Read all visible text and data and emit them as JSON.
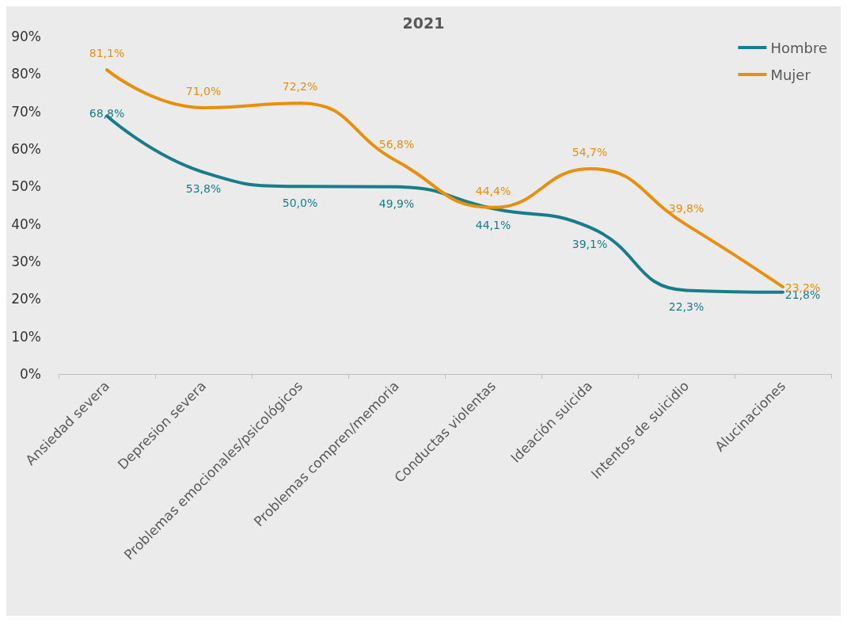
{
  "chart_data": {
    "type": "line",
    "title": "2021",
    "categories": [
      "Ansiedad severa",
      "Depresion severa",
      "Problemas emocionales/psicológicos",
      "Problemas compren/memoria",
      "Conductas violentas",
      "Ideación suicida",
      "Intentos de suicidio",
      "Alucinaciones"
    ],
    "series": [
      {
        "name": "Hombre",
        "color": "#177e89",
        "values": [
          68.8,
          53.8,
          50.0,
          49.9,
          44.1,
          39.1,
          22.3,
          21.8
        ],
        "value_labels": [
          "68,8%",
          "53,8%",
          "50,0%",
          "49,9%",
          "44,1%",
          "39,1%",
          "22,3%",
          "21,8%"
        ]
      },
      {
        "name": "Mujer",
        "color": "#e8900c",
        "values": [
          81.1,
          71.0,
          72.2,
          56.8,
          44.4,
          54.7,
          39.8,
          23.2
        ],
        "value_labels": [
          "81,1%",
          "71,0%",
          "72,2%",
          "56,8%",
          "44,4%",
          "54,7%",
          "39,8%",
          "23,2%"
        ]
      }
    ],
    "ylim": [
      0,
      90
    ],
    "yticks": [
      {
        "value": 0,
        "label": "0%"
      },
      {
        "value": 10,
        "label": "10%"
      },
      {
        "value": 20,
        "label": "20%"
      },
      {
        "value": 30,
        "label": "30%"
      },
      {
        "value": 40,
        "label": "40%"
      },
      {
        "value": 50,
        "label": "50%"
      },
      {
        "value": 60,
        "label": "60%"
      },
      {
        "value": 70,
        "label": "70%"
      },
      {
        "value": 80,
        "label": "80%"
      },
      {
        "value": 90,
        "label": "90%"
      }
    ],
    "grid": false,
    "legend": "top right",
    "marker": "none",
    "line_style": "solid"
  }
}
